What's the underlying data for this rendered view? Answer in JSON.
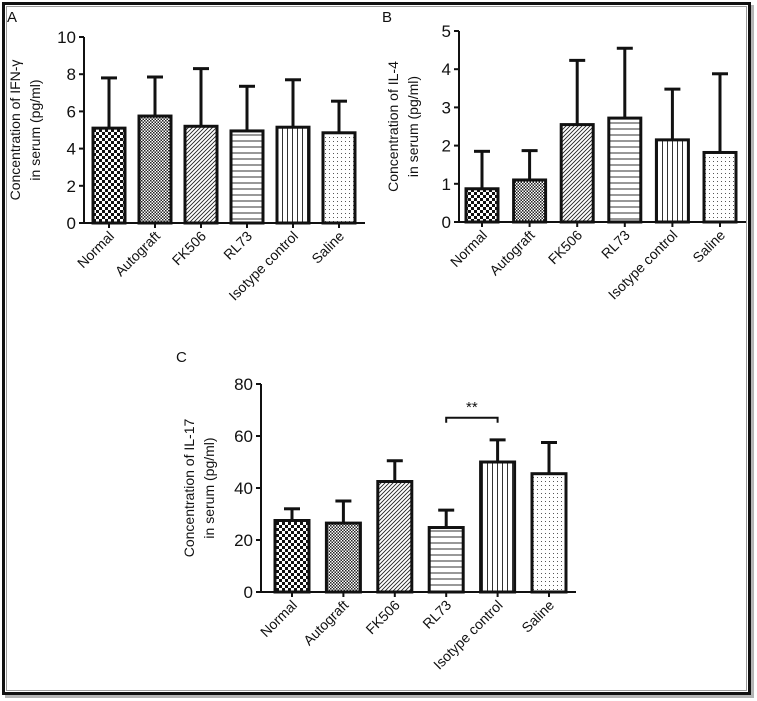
{
  "figure": {
    "panels": [
      "A",
      "B",
      "C"
    ]
  },
  "chart_data": [
    {
      "panel": "A",
      "type": "bar",
      "title": "",
      "ylabel": "Concentration of IFN-γ\nin serum (pg/ml)",
      "ylabel_lines": [
        "Concentration of IFN-γ",
        "in serum (pg/ml)"
      ],
      "xlabel": "",
      "categories": [
        "Normal",
        "Autograft",
        "FK506",
        "RL73",
        "Isotype control",
        "Saline"
      ],
      "values": [
        5.1,
        5.75,
        5.2,
        4.95,
        5.15,
        4.85
      ],
      "error_upper": [
        7.8,
        7.85,
        8.3,
        7.35,
        7.7,
        6.55
      ],
      "patterns": [
        "checker-large",
        "checker-small",
        "diagonal",
        "horizontal",
        "vertical",
        "dots"
      ],
      "ylim": [
        0,
        10
      ],
      "yticks": [
        0,
        2,
        4,
        6,
        8,
        10
      ],
      "grid": false,
      "annotations": []
    },
    {
      "panel": "B",
      "type": "bar",
      "title": "",
      "ylabel": "Concentration of IL-4\nin serum (pg/ml)",
      "ylabel_lines": [
        "Concentration of IL-4",
        "in serum (pg/ml)"
      ],
      "xlabel": "",
      "categories": [
        "Normal",
        "Autograft",
        "FK506",
        "RL73",
        "Isotype control",
        "Saline"
      ],
      "values": [
        0.87,
        1.1,
        2.55,
        2.72,
        2.15,
        1.82
      ],
      "error_upper": [
        1.85,
        1.87,
        4.23,
        4.55,
        3.48,
        3.88
      ],
      "patterns": [
        "checker-large",
        "checker-small",
        "diagonal",
        "horizontal",
        "vertical",
        "dots"
      ],
      "ylim": [
        0,
        5
      ],
      "yticks": [
        0,
        1,
        2,
        3,
        4,
        5
      ],
      "grid": false,
      "annotations": []
    },
    {
      "panel": "C",
      "type": "bar",
      "title": "",
      "ylabel": "Concentration of IL-17\nin serum (pg/ml)",
      "ylabel_lines": [
        "Concentration of IL-17",
        "in serum (pg/ml)"
      ],
      "xlabel": "",
      "categories": [
        "Normal",
        "Autograft",
        "FK506",
        "RL73",
        "Isotype control",
        "Saline"
      ],
      "values": [
        27.5,
        26.5,
        42.5,
        24.8,
        50,
        45.5
      ],
      "error_upper": [
        32,
        35,
        50.5,
        31.5,
        58.5,
        57.5
      ],
      "patterns": [
        "checker-large",
        "checker-small",
        "diagonal",
        "horizontal",
        "vertical",
        "dots"
      ],
      "ylim": [
        0,
        80
      ],
      "yticks": [
        0,
        20,
        40,
        60,
        80
      ],
      "grid": false,
      "annotations": [
        {
          "text": "**",
          "from": "RL73",
          "to": "Isotype control",
          "y": 67
        }
      ]
    }
  ]
}
